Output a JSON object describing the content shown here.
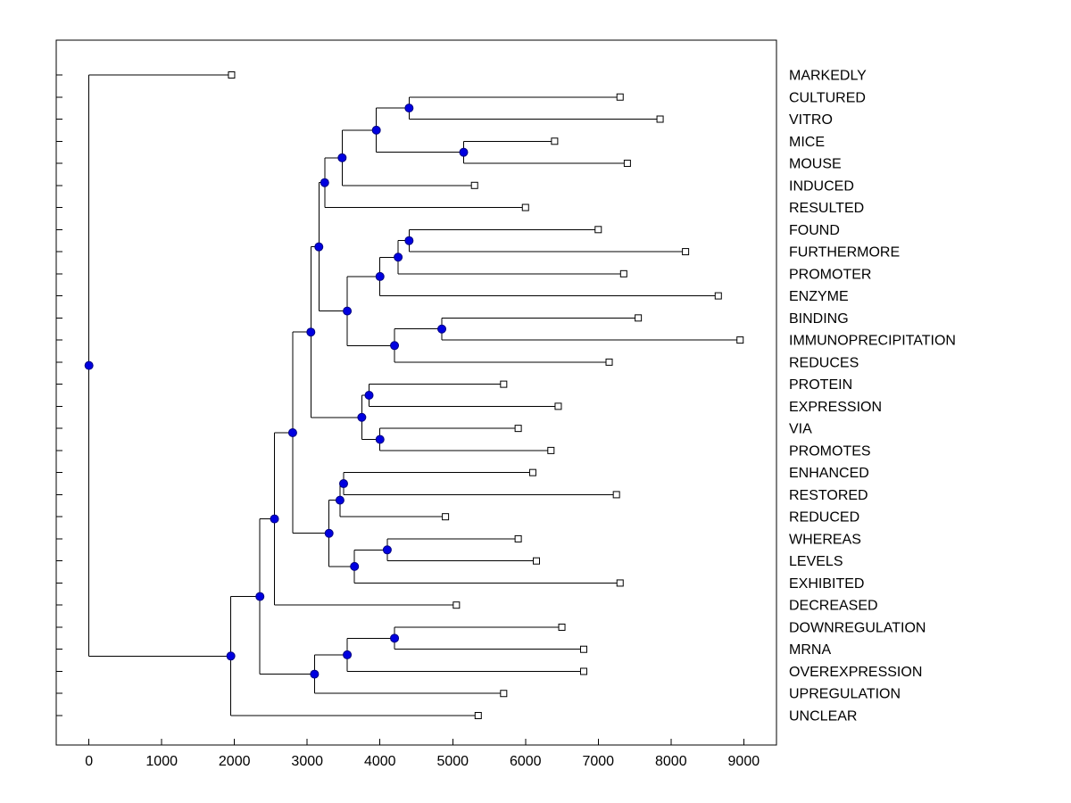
{
  "figure": {
    "background": "#ffffff"
  },
  "chart_data": {
    "type": "dendrogram",
    "orientation": "horizontal, leaves on right",
    "title": "",
    "xlabel": "",
    "ylabel": "",
    "grid": false,
    "legend": null,
    "xlim": [
      -450,
      9450
    ],
    "x_ticks": [
      0,
      1000,
      2000,
      3000,
      4000,
      5000,
      6000,
      7000,
      8000,
      9000
    ],
    "x_tick_labels": [
      "0",
      "1000",
      "2000",
      "3000",
      "4000",
      "5000",
      "6000",
      "7000",
      "8000",
      "9000"
    ],
    "colors": {
      "branch_line": "#000000",
      "merge_node_fill": "#0000e0",
      "merge_node_edge": "#000080",
      "leaf_marker_fill": "#ffffff",
      "leaf_marker_edge": "#000000",
      "axis": "#000000",
      "text": "#000000"
    },
    "leaf_labels": [
      "MARKEDLY",
      "CULTURED",
      "VITRO",
      "MICE",
      "MOUSE",
      "INDUCED",
      "RESULTED",
      "FOUND",
      "FURTHERMORE",
      "PROMOTER",
      "ENZYME",
      "BINDING",
      "IMMUNOPRECIPITATION",
      "REDUCES",
      "PROTEIN",
      "EXPRESSION",
      "VIA",
      "PROMOTES",
      "ENHANCED",
      "RESTORED",
      "REDUCED",
      "WHEREAS",
      "LEVELS",
      "EXHIBITED",
      "DECREASED",
      "DOWNREGULATION",
      "MRNA",
      "OVEREXPRESSION",
      "UPREGULATION",
      "UNCLEAR"
    ],
    "tree": {
      "dist": 0,
      "children": [
        {
          "name": "MARKEDLY",
          "dist": 1960
        },
        {
          "dist": 1950,
          "children": [
            {
              "dist": 2350,
              "children": [
                {
                  "dist": 2550,
                  "children": [
                    {
                      "dist": 2800,
                      "children": [
                        {
                          "dist": 3050,
                          "children": [
                            {
                              "dist": 3160,
                              "children": [
                                {
                                  "dist": 3240,
                                  "children": [
                                    {
                                      "dist": 3480,
                                      "children": [
                                        {
                                          "dist": 3950,
                                          "children": [
                                            {
                                              "dist": 4400,
                                              "children": [
                                                {
                                                  "name": "CULTURED",
                                                  "dist": 7300
                                                },
                                                {
                                                  "name": "VITRO",
                                                  "dist": 7850
                                                }
                                              ]
                                            },
                                            {
                                              "dist": 5150,
                                              "children": [
                                                {
                                                  "name": "MICE",
                                                  "dist": 6400
                                                },
                                                {
                                                  "name": "MOUSE",
                                                  "dist": 7400
                                                }
                                              ]
                                            }
                                          ]
                                        },
                                        {
                                          "name": "INDUCED",
                                          "dist": 5300
                                        }
                                      ]
                                    },
                                    {
                                      "name": "RESULTED",
                                      "dist": 6000
                                    }
                                  ]
                                },
                                {
                                  "dist": 3550,
                                  "children": [
                                    {
                                      "dist": 4000,
                                      "children": [
                                        {
                                          "dist": 4250,
                                          "children": [
                                            {
                                              "dist": 4400,
                                              "children": [
                                                {
                                                  "name": "FOUND",
                                                  "dist": 7000
                                                },
                                                {
                                                  "name": "FURTHERMORE",
                                                  "dist": 8200
                                                }
                                              ]
                                            },
                                            {
                                              "name": "PROMOTER",
                                              "dist": 7350
                                            }
                                          ]
                                        },
                                        {
                                          "name": "ENZYME",
                                          "dist": 8650
                                        }
                                      ]
                                    },
                                    {
                                      "dist": 4200,
                                      "children": [
                                        {
                                          "dist": 4850,
                                          "children": [
                                            {
                                              "name": "BINDING",
                                              "dist": 7550
                                            },
                                            {
                                              "name": "IMMUNOPRECIPITATION",
                                              "dist": 8950
                                            }
                                          ]
                                        },
                                        {
                                          "name": "REDUCES",
                                          "dist": 7150
                                        }
                                      ]
                                    }
                                  ]
                                }
                              ]
                            },
                            {
                              "dist": 3750,
                              "children": [
                                {
                                  "dist": 3850,
                                  "children": [
                                    {
                                      "name": "PROTEIN",
                                      "dist": 5700
                                    },
                                    {
                                      "name": "EXPRESSION",
                                      "dist": 6450
                                    }
                                  ]
                                },
                                {
                                  "dist": 4000,
                                  "children": [
                                    {
                                      "name": "VIA",
                                      "dist": 5900
                                    },
                                    {
                                      "name": "PROMOTES",
                                      "dist": 6350
                                    }
                                  ]
                                }
                              ]
                            }
                          ]
                        },
                        {
                          "dist": 3300,
                          "children": [
                            {
                              "dist": 3450,
                              "children": [
                                {
                                  "dist": 3500,
                                  "children": [
                                    {
                                      "name": "ENHANCED",
                                      "dist": 6100
                                    },
                                    {
                                      "name": "RESTORED",
                                      "dist": 7250
                                    }
                                  ]
                                },
                                {
                                  "name": "REDUCED",
                                  "dist": 4900
                                }
                              ]
                            },
                            {
                              "dist": 3650,
                              "children": [
                                {
                                  "dist": 4100,
                                  "children": [
                                    {
                                      "name": "WHEREAS",
                                      "dist": 5900
                                    },
                                    {
                                      "name": "LEVELS",
                                      "dist": 6150
                                    }
                                  ]
                                },
                                {
                                  "name": "EXHIBITED",
                                  "dist": 7300
                                }
                              ]
                            }
                          ]
                        }
                      ]
                    },
                    {
                      "name": "DECREASED",
                      "dist": 5050
                    }
                  ]
                },
                {
                  "dist": 3100,
                  "children": [
                    {
                      "dist": 3550,
                      "children": [
                        {
                          "dist": 4200,
                          "children": [
                            {
                              "name": "DOWNREGULATION",
                              "dist": 6500
                            },
                            {
                              "name": "MRNA",
                              "dist": 6800
                            }
                          ]
                        },
                        {
                          "name": "OVEREXPRESSION",
                          "dist": 6800
                        }
                      ]
                    },
                    {
                      "name": "UPREGULATION",
                      "dist": 5700
                    }
                  ]
                }
              ]
            },
            {
              "name": "UNCLEAR",
              "dist": 5350
            }
          ]
        }
      ]
    }
  }
}
